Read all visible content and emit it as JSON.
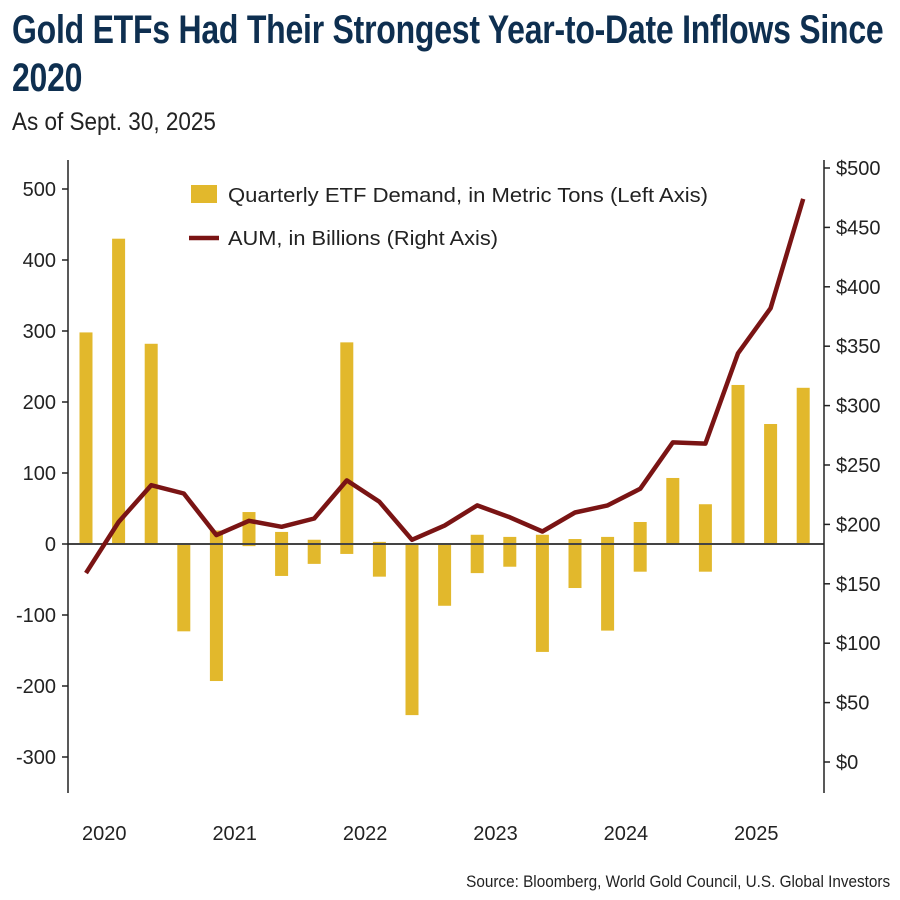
{
  "chart_data": {
    "type": "bar+line",
    "title": "Gold ETFs Had Their Strongest Year-to-Date Inflows Since 2020",
    "subtitle": "As of Sept. 30, 2025",
    "source": "Source: Bloomberg, World Gold Council, U.S. Global Investors",
    "x_tick_labels": [
      "2020",
      "2021",
      "2022",
      "2023",
      "2024",
      "2025"
    ],
    "quarters": [
      "2020Q1",
      "2020Q2",
      "2020Q3",
      "2020Q4",
      "2021Q1",
      "2021Q2",
      "2021Q3",
      "2021Q4",
      "2022Q1",
      "2022Q2",
      "2022Q3",
      "2022Q4",
      "2023Q1",
      "2023Q2",
      "2023Q3",
      "2023Q4",
      "2024Q1",
      "2024Q2",
      "2024Q3",
      "2024Q4",
      "2025Q1",
      "2025Q2",
      "2025Q3"
    ],
    "left_axis": {
      "ylim": [
        -350,
        530
      ],
      "ticks": [
        -300,
        -200,
        -100,
        0,
        100,
        200,
        300,
        400,
        500
      ],
      "tick_labels": [
        "-300",
        "-200",
        "-100",
        "0",
        "100",
        "200",
        "300",
        "400",
        "500"
      ]
    },
    "right_axis": {
      "ylim": [
        -20,
        510
      ],
      "ticks": [
        0,
        50,
        100,
        150,
        200,
        250,
        300,
        350,
        400,
        450,
        500
      ],
      "tick_labels": [
        "$0",
        "$50",
        "$100",
        "$150",
        "$200",
        "$250",
        "$300",
        "$350",
        "$400",
        "$450",
        "$500"
      ]
    },
    "series": [
      {
        "name": "Quarterly ETF Demand, in Metric Tons (Left Axis)",
        "type": "floating-bar",
        "axis": "left",
        "color": "#e2b82c",
        "ranges": [
          [
            0,
            298
          ],
          [
            0,
            430
          ],
          [
            0,
            282
          ],
          [
            -123,
            0
          ],
          [
            -193,
            19
          ],
          [
            -3,
            45
          ],
          [
            -45,
            17
          ],
          [
            -28,
            6
          ],
          [
            -14,
            284
          ],
          [
            -46,
            3
          ],
          [
            -241,
            0
          ],
          [
            -87,
            0
          ],
          [
            -41,
            13
          ],
          [
            -32,
            10
          ],
          [
            -152,
            13
          ],
          [
            -62,
            7
          ],
          [
            -122,
            10
          ],
          [
            -39,
            31
          ],
          [
            0,
            93
          ],
          [
            -39,
            56
          ],
          [
            0,
            224
          ],
          [
            0,
            169
          ],
          [
            0,
            220
          ]
        ]
      },
      {
        "name": "AUM, in Billions (Right Axis)",
        "type": "line",
        "axis": "right",
        "color": "#7a1414",
        "values": [
          159,
          202,
          233,
          226,
          191,
          203,
          198,
          205,
          237,
          219,
          187,
          199,
          216,
          206,
          194,
          210,
          216,
          230,
          269,
          268,
          344,
          382,
          474
        ]
      }
    ],
    "legend_position": "top-center",
    "grid": false
  }
}
